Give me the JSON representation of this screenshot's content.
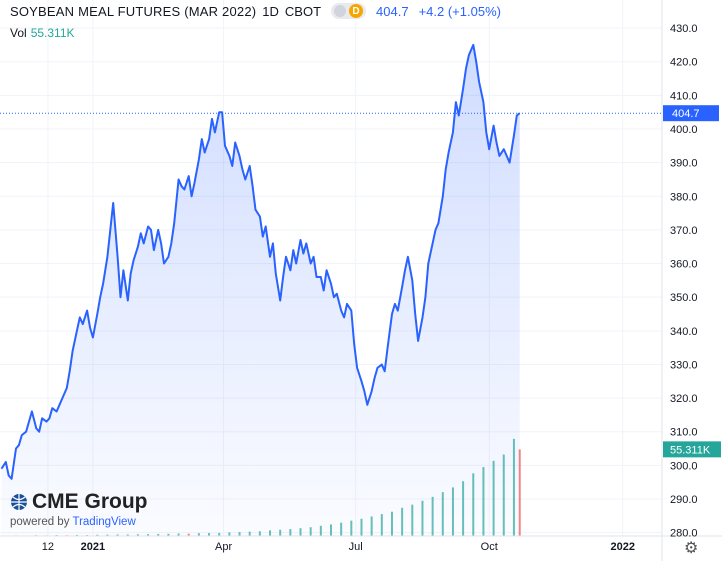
{
  "header": {
    "symbol": "SOYBEAN MEAL FUTURES (MAR 2022)",
    "interval": "1D",
    "exchange": "CBOT",
    "badge_letter": "D",
    "last_price": "404.7",
    "change": "+4.2 (+1.05%)"
  },
  "volume_legend": {
    "label": "Vol",
    "value": "55.311K"
  },
  "branding": {
    "brand_name": "CME Group",
    "powered_by": "powered by",
    "powered_name": "TradingView"
  },
  "colors": {
    "line": "#2962ff",
    "fill": "#dbe4fb",
    "vol_up": "#26a69a",
    "vol_down": "#ef5350",
    "price_tag": "#2962ff",
    "vol_tag": "#26a69a"
  },
  "chart_data": {
    "type": "area",
    "title": "SOYBEAN MEAL FUTURES (MAR 2022)",
    "xlabel": "",
    "ylabel": "",
    "ylim": [
      279,
      433
    ],
    "yticks": [
      280,
      290,
      300,
      310,
      320,
      330,
      340,
      350,
      360,
      370,
      380,
      390,
      400,
      410,
      420,
      430
    ],
    "xticks": [
      {
        "label": "12",
        "x": "2020-12-01"
      },
      {
        "label": "2021",
        "x": "2021-01-01"
      },
      {
        "label": "Apr",
        "x": "2021-04-01"
      },
      {
        "label": "Jul",
        "x": "2021-07-01"
      },
      {
        "label": "Oct",
        "x": "2021-10-01"
      },
      {
        "label": "2022",
        "x": "2022-01-01"
      }
    ],
    "xlim": [
      "2020-10-29",
      "2022-01-28"
    ],
    "last_price": 404.7,
    "last_volume": "55.311K",
    "grid": true,
    "series": [
      {
        "points": [
          [
            "2020-10-30",
            299
          ],
          [
            "2020-11-02",
            301
          ],
          [
            "2020-11-04",
            297
          ],
          [
            "2020-11-06",
            296
          ],
          [
            "2020-11-09",
            305
          ],
          [
            "2020-11-11",
            306
          ],
          [
            "2020-11-13",
            309
          ],
          [
            "2020-11-16",
            310
          ],
          [
            "2020-11-18",
            313
          ],
          [
            "2020-11-20",
            316
          ],
          [
            "2020-11-23",
            311
          ],
          [
            "2020-11-25",
            310
          ],
          [
            "2020-11-27",
            314
          ],
          [
            "2020-11-30",
            313
          ],
          [
            "2020-12-02",
            314
          ],
          [
            "2020-12-04",
            317
          ],
          [
            "2020-12-07",
            316
          ],
          [
            "2020-12-09",
            318
          ],
          [
            "2020-12-11",
            320
          ],
          [
            "2020-12-14",
            323
          ],
          [
            "2020-12-16",
            328
          ],
          [
            "2020-12-18",
            334
          ],
          [
            "2020-12-21",
            340
          ],
          [
            "2020-12-23",
            344
          ],
          [
            "2020-12-25",
            342
          ],
          [
            "2020-12-28",
            346
          ],
          [
            "2020-12-30",
            341
          ],
          [
            "2021-01-01",
            338
          ],
          [
            "2021-01-04",
            345
          ],
          [
            "2021-01-06",
            350
          ],
          [
            "2021-01-08",
            354
          ],
          [
            "2021-01-11",
            362
          ],
          [
            "2021-01-13",
            370
          ],
          [
            "2021-01-15",
            378
          ],
          [
            "2021-01-18",
            362
          ],
          [
            "2021-01-20",
            350
          ],
          [
            "2021-01-22",
            358
          ],
          [
            "2021-01-25",
            349
          ],
          [
            "2021-01-27",
            357
          ],
          [
            "2021-01-29",
            361
          ],
          [
            "2021-02-01",
            365
          ],
          [
            "2021-02-03",
            369
          ],
          [
            "2021-02-05",
            366
          ],
          [
            "2021-02-08",
            371
          ],
          [
            "2021-02-10",
            370
          ],
          [
            "2021-02-12",
            364
          ],
          [
            "2021-02-15",
            370
          ],
          [
            "2021-02-17",
            366
          ],
          [
            "2021-02-19",
            360
          ],
          [
            "2021-02-22",
            362
          ],
          [
            "2021-02-24",
            366
          ],
          [
            "2021-02-26",
            372
          ],
          [
            "2021-03-01",
            385
          ],
          [
            "2021-03-03",
            383
          ],
          [
            "2021-03-05",
            382
          ],
          [
            "2021-03-08",
            386
          ],
          [
            "2021-03-10",
            380
          ],
          [
            "2021-03-12",
            384
          ],
          [
            "2021-03-15",
            391
          ],
          [
            "2021-03-17",
            397
          ],
          [
            "2021-03-19",
            393
          ],
          [
            "2021-03-22",
            397
          ],
          [
            "2021-03-24",
            403
          ],
          [
            "2021-03-26",
            399
          ],
          [
            "2021-03-29",
            405
          ],
          [
            "2021-03-31",
            405
          ],
          [
            "2021-04-02",
            395
          ],
          [
            "2021-04-05",
            392
          ],
          [
            "2021-04-07",
            389
          ],
          [
            "2021-04-09",
            396
          ],
          [
            "2021-04-12",
            392
          ],
          [
            "2021-04-14",
            388
          ],
          [
            "2021-04-16",
            385
          ],
          [
            "2021-04-19",
            389
          ],
          [
            "2021-04-21",
            383
          ],
          [
            "2021-04-23",
            376
          ],
          [
            "2021-04-26",
            374
          ],
          [
            "2021-04-28",
            368
          ],
          [
            "2021-04-30",
            371
          ],
          [
            "2021-05-03",
            362
          ],
          [
            "2021-05-05",
            366
          ],
          [
            "2021-05-07",
            357
          ],
          [
            "2021-05-10",
            349
          ],
          [
            "2021-05-12",
            356
          ],
          [
            "2021-05-14",
            362
          ],
          [
            "2021-05-17",
            358
          ],
          [
            "2021-05-19",
            364
          ],
          [
            "2021-05-21",
            360
          ],
          [
            "2021-05-24",
            367
          ],
          [
            "2021-05-26",
            363
          ],
          [
            "2021-05-28",
            366
          ],
          [
            "2021-05-31",
            360
          ],
          [
            "2021-06-02",
            362
          ],
          [
            "2021-06-04",
            356
          ],
          [
            "2021-06-07",
            356
          ],
          [
            "2021-06-09",
            352
          ],
          [
            "2021-06-11",
            358
          ],
          [
            "2021-06-14",
            354
          ],
          [
            "2021-06-16",
            350
          ],
          [
            "2021-06-18",
            351
          ],
          [
            "2021-06-21",
            346
          ],
          [
            "2021-06-23",
            344
          ],
          [
            "2021-06-25",
            348
          ],
          [
            "2021-06-28",
            346
          ],
          [
            "2021-06-30",
            336
          ],
          [
            "2021-07-02",
            329
          ],
          [
            "2021-07-05",
            325
          ],
          [
            "2021-07-07",
            322
          ],
          [
            "2021-07-09",
            318
          ],
          [
            "2021-07-12",
            322
          ],
          [
            "2021-07-14",
            326
          ],
          [
            "2021-07-16",
            329
          ],
          [
            "2021-07-19",
            330
          ],
          [
            "2021-07-21",
            328
          ],
          [
            "2021-07-23",
            335
          ],
          [
            "2021-07-26",
            345
          ],
          [
            "2021-07-28",
            348
          ],
          [
            "2021-07-30",
            346
          ],
          [
            "2021-08-02",
            353
          ],
          [
            "2021-08-04",
            358
          ],
          [
            "2021-08-06",
            362
          ],
          [
            "2021-08-09",
            355
          ],
          [
            "2021-08-11",
            345
          ],
          [
            "2021-08-13",
            337
          ],
          [
            "2021-08-16",
            344
          ],
          [
            "2021-08-18",
            350
          ],
          [
            "2021-08-20",
            360
          ],
          [
            "2021-08-23",
            366
          ],
          [
            "2021-08-25",
            370
          ],
          [
            "2021-08-27",
            372
          ],
          [
            "2021-08-30",
            380
          ],
          [
            "2021-09-01",
            388
          ],
          [
            "2021-09-03",
            393
          ],
          [
            "2021-09-06",
            399
          ],
          [
            "2021-09-08",
            408
          ],
          [
            "2021-09-10",
            404
          ],
          [
            "2021-09-13",
            412
          ],
          [
            "2021-09-15",
            418
          ],
          [
            "2021-09-17",
            422
          ],
          [
            "2021-09-20",
            425
          ],
          [
            "2021-09-22",
            420
          ],
          [
            "2021-09-24",
            414
          ],
          [
            "2021-09-27",
            408
          ],
          [
            "2021-09-29",
            399
          ],
          [
            "2021-10-01",
            394
          ],
          [
            "2021-10-04",
            401
          ],
          [
            "2021-10-06",
            396
          ],
          [
            "2021-10-08",
            392
          ],
          [
            "2021-10-11",
            394
          ],
          [
            "2021-10-13",
            392
          ],
          [
            "2021-10-15",
            390
          ],
          [
            "2021-10-18",
            398
          ],
          [
            "2021-10-20",
            404
          ],
          [
            "2021-10-22",
            404.7
          ]
        ]
      }
    ],
    "volume": {
      "label": "Vol",
      "bars": [
        [
          "2020-11-02",
          0.3
        ],
        [
          "2020-11-09",
          0.4
        ],
        [
          "2020-11-16",
          0.3
        ],
        [
          "2020-11-23",
          0.5
        ],
        [
          "2020-11-30",
          0.4
        ],
        [
          "2020-12-07",
          0.6
        ],
        [
          "2020-12-14",
          0.5
        ],
        [
          "2020-12-21",
          0.7
        ],
        [
          "2020-12-28",
          0.6
        ],
        [
          "2021-01-04",
          0.8
        ],
        [
          "2021-01-11",
          0.9
        ],
        [
          "2021-01-18",
          1.0
        ],
        [
          "2021-01-25",
          1.0
        ],
        [
          "2021-02-01",
          1.1
        ],
        [
          "2021-02-08",
          1.2
        ],
        [
          "2021-02-15",
          1.3
        ],
        [
          "2021-02-22",
          1.4
        ],
        [
          "2021-03-01",
          1.6
        ],
        [
          "2021-03-08",
          1.5
        ],
        [
          "2021-03-15",
          1.8
        ],
        [
          "2021-03-22",
          1.9
        ],
        [
          "2021-03-29",
          2.0
        ],
        [
          "2021-04-05",
          2.3
        ],
        [
          "2021-04-12",
          2.5
        ],
        [
          "2021-04-19",
          2.8
        ],
        [
          "2021-04-26",
          3.0
        ],
        [
          "2021-05-03",
          3.6
        ],
        [
          "2021-05-10",
          4.0
        ],
        [
          "2021-05-17",
          4.4
        ],
        [
          "2021-05-24",
          5.0
        ],
        [
          "2021-05-31",
          5.6
        ],
        [
          "2021-06-07",
          6.5
        ],
        [
          "2021-06-14",
          7.4
        ],
        [
          "2021-06-21",
          8.5
        ],
        [
          "2021-06-28",
          9.8
        ],
        [
          "2021-07-05",
          11.0
        ],
        [
          "2021-07-12",
          12.5
        ],
        [
          "2021-07-19",
          14.0
        ],
        [
          "2021-07-26",
          15.5
        ],
        [
          "2021-08-02",
          18.0
        ],
        [
          "2021-08-09",
          20.0
        ],
        [
          "2021-08-16",
          22.5
        ],
        [
          "2021-08-23",
          25.0
        ],
        [
          "2021-08-30",
          28.0
        ],
        [
          "2021-09-06",
          31.0
        ],
        [
          "2021-09-13",
          35.0
        ],
        [
          "2021-09-20",
          40.0
        ],
        [
          "2021-09-27",
          44.0
        ],
        [
          "2021-10-04",
          48.0
        ],
        [
          "2021-10-11",
          52.0
        ],
        [
          "2021-10-18",
          62.0
        ],
        [
          "2021-10-22",
          55.3
        ]
      ],
      "ylim": [
        0,
        90
      ]
    }
  }
}
